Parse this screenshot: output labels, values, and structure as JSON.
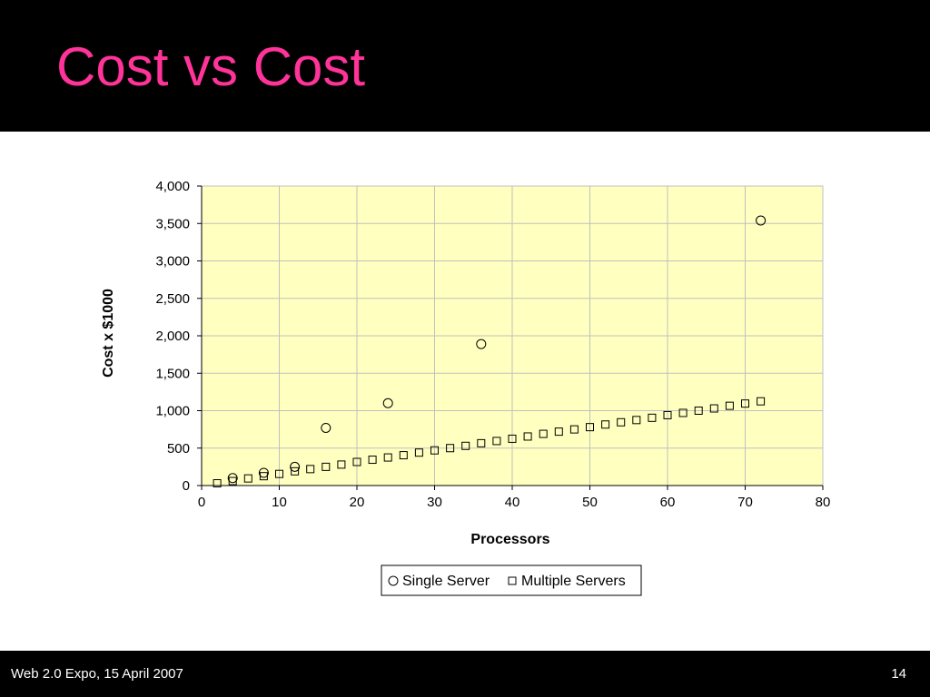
{
  "slide": {
    "title": "Cost vs Cost",
    "footer_left": "Web 2.0 Expo, 15 April 2007",
    "page_number": "14"
  },
  "colors": {
    "title": "#ff3399",
    "band": "#000000",
    "plot_background": "#ffffc0",
    "gridline": "#c0c0c0"
  },
  "chart_data": {
    "type": "scatter",
    "title": "",
    "xlabel": "Processors",
    "ylabel": "Cost x $1000",
    "xlim": [
      0,
      80
    ],
    "ylim": [
      0,
      4000
    ],
    "x_ticks": [
      0,
      10,
      20,
      30,
      40,
      50,
      60,
      70,
      80
    ],
    "x_tick_labels": [
      "0",
      "10",
      "20",
      "30",
      "40",
      "50",
      "60",
      "70",
      "80"
    ],
    "y_ticks": [
      0,
      500,
      1000,
      1500,
      2000,
      2500,
      3000,
      3500,
      4000
    ],
    "y_tick_labels": [
      "0",
      "500",
      "1,000",
      "1,500",
      "2,000",
      "2,500",
      "3,000",
      "3,500",
      "4,000"
    ],
    "grid": true,
    "legend_position": "bottom",
    "series": [
      {
        "name": "Single Server",
        "marker": "circle",
        "points": [
          [
            4,
            100
          ],
          [
            8,
            170
          ],
          [
            12,
            250
          ],
          [
            16,
            770
          ],
          [
            24,
            1100
          ],
          [
            36,
            1890
          ],
          [
            72,
            3540
          ]
        ]
      },
      {
        "name": "Multiple Servers",
        "marker": "square",
        "points": [
          [
            2,
            30
          ],
          [
            4,
            60
          ],
          [
            6,
            95
          ],
          [
            8,
            125
          ],
          [
            10,
            155
          ],
          [
            12,
            190
          ],
          [
            14,
            220
          ],
          [
            16,
            250
          ],
          [
            18,
            280
          ],
          [
            20,
            315
          ],
          [
            22,
            345
          ],
          [
            24,
            375
          ],
          [
            26,
            405
          ],
          [
            28,
            440
          ],
          [
            30,
            470
          ],
          [
            32,
            500
          ],
          [
            34,
            530
          ],
          [
            36,
            565
          ],
          [
            38,
            595
          ],
          [
            40,
            625
          ],
          [
            42,
            655
          ],
          [
            44,
            690
          ],
          [
            46,
            720
          ],
          [
            48,
            750
          ],
          [
            50,
            780
          ],
          [
            52,
            815
          ],
          [
            54,
            845
          ],
          [
            56,
            875
          ],
          [
            58,
            905
          ],
          [
            60,
            940
          ],
          [
            62,
            970
          ],
          [
            64,
            1000
          ],
          [
            66,
            1030
          ],
          [
            68,
            1065
          ],
          [
            70,
            1095
          ],
          [
            72,
            1125
          ]
        ]
      }
    ]
  }
}
